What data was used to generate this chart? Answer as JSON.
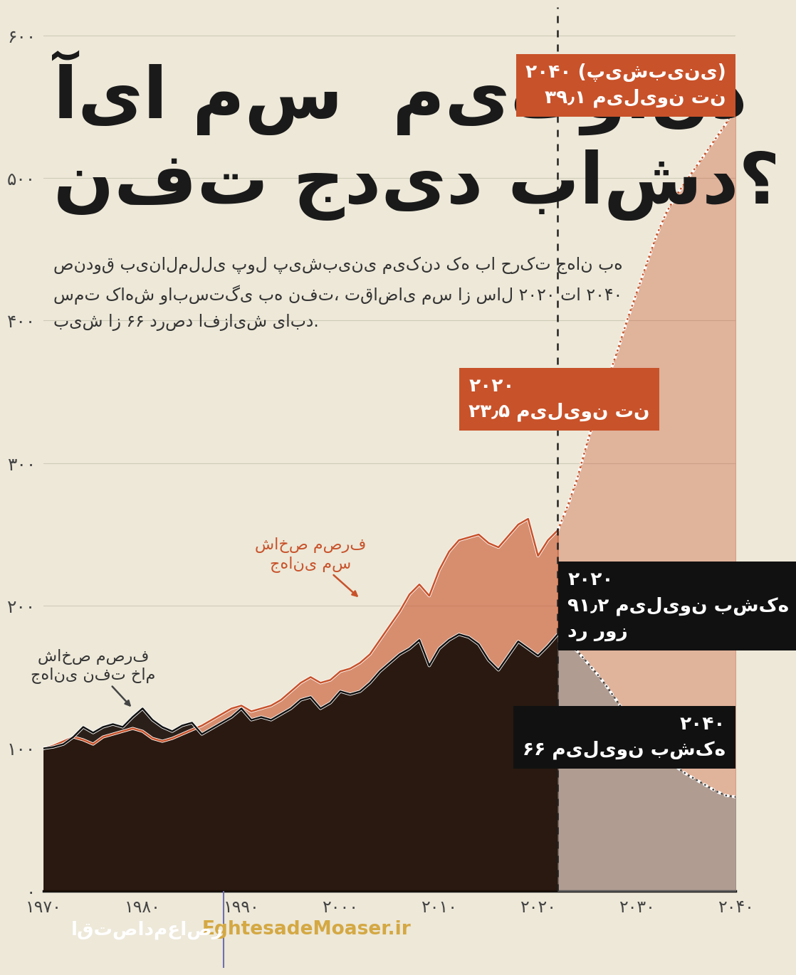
{
  "bg_color": "#ede8d8",
  "footer_color": "#4a4a9c",
  "copper_color": "#c8522a",
  "oil_dark_color": "#1a0f08",
  "vline_x": 2022,
  "yticks": [
    0,
    100,
    200,
    300,
    400,
    500,
    600
  ],
  "ytick_labels": [
    "۰",
    "۱۰۰",
    "۲۰۰",
    "۳۰۰",
    "۴۰۰",
    "۵۰۰",
    "۶۰۰"
  ],
  "xtick_values": [
    1970,
    1980,
    1990,
    2000,
    2010,
    2020,
    2030,
    2040
  ],
  "xtick_labels": [
    "۱۹۷۰",
    "۱۹۸۰",
    "۱۹۹۰",
    "۲۰۰۰",
    "۲۰۱۰",
    "۲۰۲۰",
    "۲۰۳۰",
    "۲۰۴۰"
  ],
  "copper_hist_x": [
    1970,
    1971,
    1972,
    1973,
    1974,
    1975,
    1976,
    1977,
    1978,
    1979,
    1980,
    1981,
    1982,
    1983,
    1984,
    1985,
    1986,
    1987,
    1988,
    1989,
    1990,
    1991,
    1992,
    1993,
    1994,
    1995,
    1996,
    1997,
    1998,
    1999,
    2000,
    2001,
    2002,
    2003,
    2004,
    2005,
    2006,
    2007,
    2008,
    2009,
    2010,
    2011,
    2012,
    2013,
    2014,
    2015,
    2016,
    2017,
    2018,
    2019,
    2020,
    2021,
    2022
  ],
  "copper_hist_y": [
    100,
    102,
    105,
    108,
    106,
    103,
    108,
    110,
    112,
    114,
    112,
    107,
    105,
    107,
    110,
    113,
    116,
    120,
    124,
    128,
    130,
    126,
    128,
    130,
    134,
    140,
    146,
    150,
    146,
    148,
    154,
    156,
    160,
    166,
    176,
    186,
    196,
    208,
    215,
    207,
    225,
    238,
    246,
    248,
    250,
    244,
    241,
    249,
    257,
    261,
    235,
    246,
    253
  ],
  "copper_fore_x": [
    2022,
    2023,
    2024,
    2025,
    2026,
    2027,
    2028,
    2029,
    2030,
    2031,
    2032,
    2033,
    2034,
    2035,
    2036,
    2037,
    2038,
    2039,
    2040
  ],
  "copper_fore_y": [
    253,
    270,
    290,
    315,
    338,
    358,
    378,
    400,
    420,
    440,
    460,
    476,
    488,
    498,
    508,
    518,
    528,
    538,
    550
  ],
  "oil_hist_x": [
    1970,
    1971,
    1972,
    1973,
    1974,
    1975,
    1976,
    1977,
    1978,
    1979,
    1980,
    1981,
    1982,
    1983,
    1984,
    1985,
    1986,
    1987,
    1988,
    1989,
    1990,
    1991,
    1992,
    1993,
    1994,
    1995,
    1996,
    1997,
    1998,
    1999,
    2000,
    2001,
    2002,
    2003,
    2004,
    2005,
    2006,
    2007,
    2008,
    2009,
    2010,
    2011,
    2012,
    2013,
    2014,
    2015,
    2016,
    2017,
    2018,
    2019,
    2020,
    2021,
    2022
  ],
  "oil_hist_y": [
    100,
    101,
    103,
    108,
    115,
    111,
    115,
    117,
    115,
    122,
    128,
    120,
    115,
    112,
    116,
    118,
    110,
    114,
    118,
    122,
    128,
    120,
    122,
    120,
    124,
    128,
    134,
    136,
    128,
    132,
    140,
    138,
    140,
    146,
    154,
    160,
    166,
    170,
    176,
    158,
    170,
    176,
    180,
    178,
    173,
    162,
    155,
    165,
    175,
    170,
    165,
    172,
    180
  ],
  "oil_fore_x": [
    2022,
    2023,
    2024,
    2025,
    2026,
    2027,
    2028,
    2029,
    2030,
    2031,
    2032,
    2033,
    2034,
    2035,
    2036,
    2037,
    2038,
    2039,
    2040
  ],
  "oil_fore_y": [
    180,
    175,
    168,
    160,
    152,
    143,
    133,
    123,
    112,
    105,
    98,
    92,
    87,
    82,
    78,
    74,
    70,
    67,
    66
  ]
}
